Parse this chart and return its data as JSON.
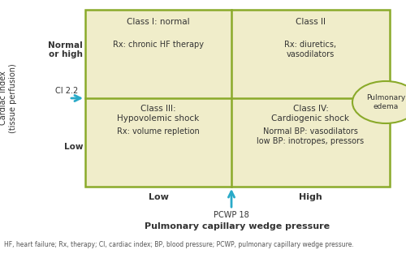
{
  "bg_color": "#ffffff",
  "grid_color": "#8aaa2a",
  "cell_fill": "#f0edca",
  "arrow_color": "#29aac8",
  "ellipse_color": "#8aaa2a",
  "cells": {
    "top_left": {
      "title": "Class I: normal",
      "body": "Rx: chronic HF therapy"
    },
    "top_right": {
      "title": "Class II",
      "body": "Rx: diuretics,\nvasodilators"
    },
    "bottom_left": {
      "title": "Class III:\nHypovolemic shock",
      "body": "Rx: volume repletion"
    },
    "bottom_right": {
      "title": "Class IV:\nCardiogenic shock",
      "body": "Normal BP: vasodilators\nlow BP: inotropes, pressors"
    }
  },
  "y_label": "Cardiac index\n(tissue perfusion)",
  "x_label": "Pulmonary capillary wedge pressure",
  "y_high_label": "Normal\nor high",
  "y_low_label": "Low",
  "x_low_label": "Low",
  "x_high_label": "High",
  "ci_label": "CI 2.2",
  "pcwp_label": "PCWP 18",
  "ellipse_label": "Pulmonary\nedema",
  "footnote": "HF, heart failure; Rx, therapy; CI, cardiac index; BP, blood pressure; PCWP, pulmonary capillary wedge pressure."
}
